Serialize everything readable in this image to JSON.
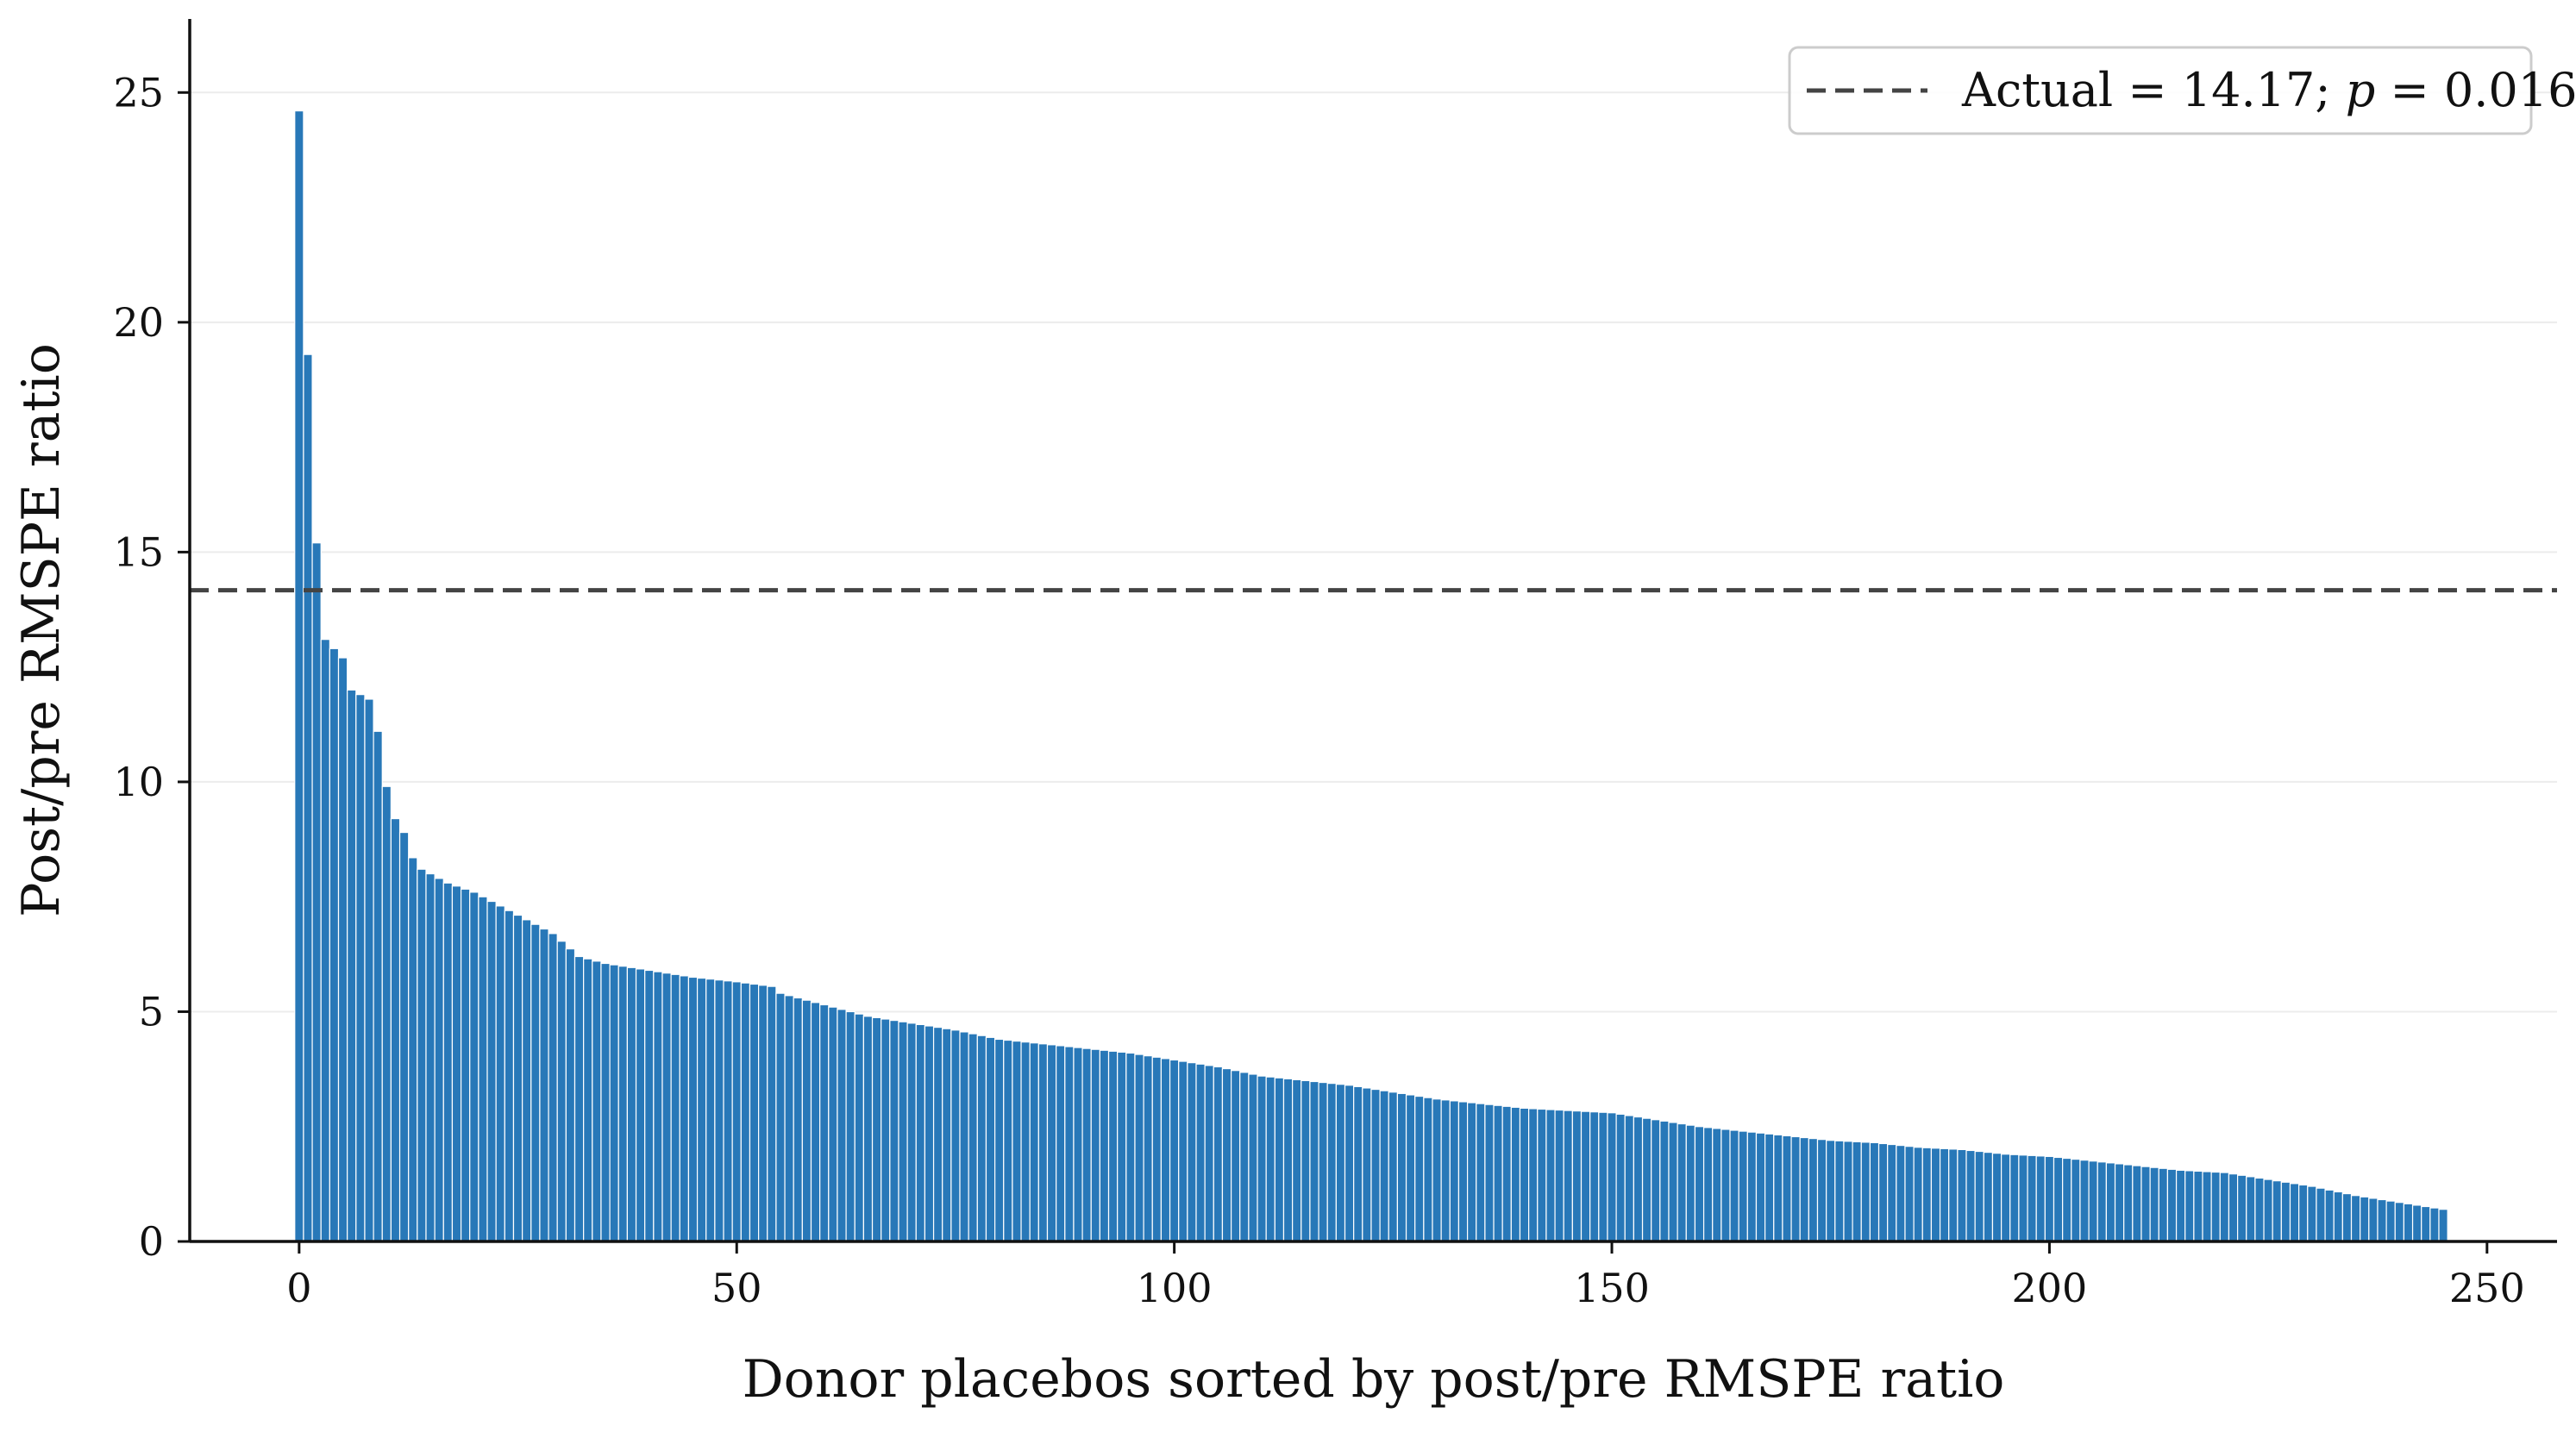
{
  "chart_data": {
    "type": "bar",
    "title": "",
    "xlabel": "Donor placebos sorted by post/pre RMSPE ratio",
    "ylabel": "Post/pre RMSPE ratio",
    "xlim": [
      -12.5,
      258
    ],
    "ylim": [
      0,
      26.6
    ],
    "xticks": [
      0,
      50,
      100,
      150,
      200,
      250
    ],
    "yticks": [
      0,
      5,
      10,
      15,
      20,
      25
    ],
    "grid": "horizontal",
    "bar_color": "#2878b8",
    "bar_edge_color": "#ffffff",
    "reference_line": {
      "value": 14.17,
      "style": "dashed",
      "color": "#444444",
      "label_prefix": "Actual = 14.17; ",
      "label_italic": "p",
      "label_suffix": " = 0.016"
    },
    "legend_position": "top-right",
    "n_bars": 246,
    "anchor_values": [
      [
        0,
        24.6
      ],
      [
        1,
        19.3
      ],
      [
        2,
        15.2
      ],
      [
        3,
        13.1
      ],
      [
        4,
        12.9
      ],
      [
        5,
        12.7
      ],
      [
        6,
        12.0
      ],
      [
        7,
        11.9
      ],
      [
        8,
        11.8
      ],
      [
        9,
        11.1
      ],
      [
        10,
        9.9
      ],
      [
        11,
        9.2
      ],
      [
        12,
        8.9
      ],
      [
        13,
        8.35
      ],
      [
        14,
        8.1
      ],
      [
        15,
        8.0
      ],
      [
        16,
        7.9
      ],
      [
        17,
        7.8
      ],
      [
        20,
        7.6
      ],
      [
        23,
        7.3
      ],
      [
        26,
        7.0
      ],
      [
        29,
        6.7
      ],
      [
        32,
        6.2
      ],
      [
        35,
        6.05
      ],
      [
        40,
        5.9
      ],
      [
        45,
        5.75
      ],
      [
        50,
        5.65
      ],
      [
        54,
        5.55
      ],
      [
        55,
        5.4
      ],
      [
        60,
        5.15
      ],
      [
        65,
        4.9
      ],
      [
        70,
        4.75
      ],
      [
        75,
        4.6
      ],
      [
        80,
        4.4
      ],
      [
        90,
        4.2
      ],
      [
        95,
        4.1
      ],
      [
        100,
        3.95
      ],
      [
        105,
        3.8
      ],
      [
        110,
        3.6
      ],
      [
        115,
        3.5
      ],
      [
        120,
        3.4
      ],
      [
        125,
        3.25
      ],
      [
        130,
        3.1
      ],
      [
        135,
        3.0
      ],
      [
        140,
        2.9
      ],
      [
        145,
        2.85
      ],
      [
        150,
        2.8
      ],
      [
        155,
        2.65
      ],
      [
        160,
        2.5
      ],
      [
        165,
        2.4
      ],
      [
        170,
        2.3
      ],
      [
        175,
        2.2
      ],
      [
        180,
        2.15
      ],
      [
        185,
        2.05
      ],
      [
        190,
        2.0
      ],
      [
        195,
        1.9
      ],
      [
        200,
        1.85
      ],
      [
        205,
        1.75
      ],
      [
        210,
        1.65
      ],
      [
        215,
        1.55
      ],
      [
        220,
        1.5
      ],
      [
        225,
        1.35
      ],
      [
        230,
        1.2
      ],
      [
        235,
        1.0
      ],
      [
        240,
        0.85
      ],
      [
        245,
        0.7
      ]
    ]
  }
}
